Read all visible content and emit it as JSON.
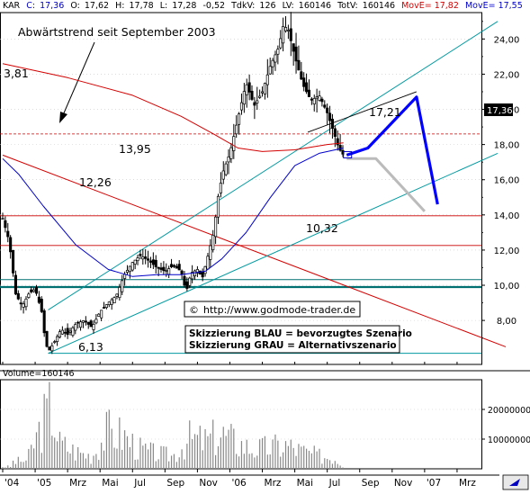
{
  "header": {
    "symbol": "KAR",
    "close_label": "C:",
    "close": "17,36",
    "open_label": "O:",
    "open": "17,62",
    "high_label": "H:",
    "high": "17,78",
    "low_label": "L:",
    "low": "17,28",
    "change": "-0,52",
    "tkv_label": "TdkV:",
    "tkv": "126",
    "lv_label": "LV:",
    "lv": "160146",
    "totv_label": "TotV:",
    "totv": "160146",
    "move1_label": "MovE=",
    "move1": "17,82",
    "move2_label": "MovE=",
    "move2": "17,55"
  },
  "annotations": {
    "trend_text": "Abwärtstrend seit September 2003",
    "website": "http://www.godmode-trader.de",
    "copyright_symbol": "©",
    "scenario_blue": "Skizzierung BLAU = bevorzugtes Szenario",
    "scenario_grey": "Skizzierung GRAU = Alternativszenario",
    "levels": [
      "3,81",
      "17,21",
      "13,95",
      "12,26",
      "10,32",
      "6,13"
    ],
    "last_price_tag": "17,36"
  },
  "volume_label": "Volume=160146",
  "colors": {
    "candle": "#000000",
    "ma_red": "#d40000",
    "ma_blue": "#0000c8",
    "channel": "#009aa0",
    "support_teal": "#007070",
    "level_red": "#cc0000",
    "scenario_blue": "#0000ff",
    "scenario_grey": "#bbbbbb",
    "volume": "#888888",
    "price_tag_bg": "#000000"
  },
  "chart_data": {
    "type": "candlestick",
    "y_axis": {
      "ticks": [
        "24,00",
        "22,00",
        "20,00",
        "18,00",
        "16,00",
        "14,00",
        "12,00",
        "10,00",
        "8,00"
      ],
      "range": [
        5.5,
        25.5
      ]
    },
    "x_axis": {
      "ticks": [
        "'04",
        "'05",
        "Mrz",
        "Mai",
        "Jul",
        "Sep",
        "Nov",
        "'06",
        "Mrz",
        "Mai",
        "Jul",
        "Sep",
        "Nov",
        "'07",
        "Mrz"
      ],
      "range_months": [
        "2004-11",
        "2007-04"
      ]
    },
    "horizontal_levels": [
      18.6,
      13.95,
      12.26,
      10.32,
      9.9,
      6.13
    ],
    "price_series": [
      {
        "m": 0.0,
        "p": 13.8
      },
      {
        "m": 0.4,
        "p": 12.5
      },
      {
        "m": 0.8,
        "p": 9.5
      },
      {
        "m": 1.2,
        "p": 8.8
      },
      {
        "m": 1.6,
        "p": 9.5
      },
      {
        "m": 2.0,
        "p": 9.8
      },
      {
        "m": 2.4,
        "p": 8.5
      },
      {
        "m": 2.6,
        "p": 7.0
      },
      {
        "m": 2.8,
        "p": 6.2
      },
      {
        "m": 3.2,
        "p": 6.8
      },
      {
        "m": 3.6,
        "p": 7.5
      },
      {
        "m": 4.0,
        "p": 7.2
      },
      {
        "m": 4.5,
        "p": 7.8
      },
      {
        "m": 5.0,
        "p": 8.0
      },
      {
        "m": 5.5,
        "p": 7.6
      },
      {
        "m": 6.0,
        "p": 8.5
      },
      {
        "m": 6.5,
        "p": 9.0
      },
      {
        "m": 7.0,
        "p": 9.4
      },
      {
        "m": 7.5,
        "p": 10.6
      },
      {
        "m": 8.0,
        "p": 11.3
      },
      {
        "m": 8.5,
        "p": 11.7
      },
      {
        "m": 9.0,
        "p": 11.4
      },
      {
        "m": 9.5,
        "p": 11.0
      },
      {
        "m": 10.0,
        "p": 10.8
      },
      {
        "m": 10.5,
        "p": 11.1
      },
      {
        "m": 11.0,
        "p": 10.8
      },
      {
        "m": 11.3,
        "p": 9.6
      },
      {
        "m": 11.6,
        "p": 10.7
      },
      {
        "m": 12.0,
        "p": 10.9
      },
      {
        "m": 12.3,
        "p": 10.4
      },
      {
        "m": 12.6,
        "p": 11.5
      },
      {
        "m": 13.0,
        "p": 13.0
      },
      {
        "m": 13.3,
        "p": 15.2
      },
      {
        "m": 13.6,
        "p": 16.5
      },
      {
        "m": 14.0,
        "p": 17.5
      },
      {
        "m": 14.5,
        "p": 19.5
      },
      {
        "m": 15.0,
        "p": 21.5
      },
      {
        "m": 15.5,
        "p": 20.2
      },
      {
        "m": 16.0,
        "p": 21.0
      },
      {
        "m": 16.5,
        "p": 22.5
      },
      {
        "m": 17.0,
        "p": 23.5
      },
      {
        "m": 17.3,
        "p": 24.8
      },
      {
        "m": 17.6,
        "p": 24.5
      },
      {
        "m": 18.0,
        "p": 23.0
      },
      {
        "m": 18.5,
        "p": 21.4
      },
      {
        "m": 19.0,
        "p": 20.5
      },
      {
        "m": 19.5,
        "p": 20.8
      },
      {
        "m": 20.0,
        "p": 19.8
      },
      {
        "m": 20.4,
        "p": 18.7
      },
      {
        "m": 20.7,
        "p": 17.8
      },
      {
        "m": 21.0,
        "p": 17.4
      }
    ],
    "moving_average_red": [
      {
        "m": 0,
        "p": 22.6
      },
      {
        "m": 4,
        "p": 21.8
      },
      {
        "m": 8,
        "p": 20.8
      },
      {
        "m": 11,
        "p": 19.6
      },
      {
        "m": 13,
        "p": 18.6
      },
      {
        "m": 14.5,
        "p": 17.8
      },
      {
        "m": 16,
        "p": 17.6
      },
      {
        "m": 18,
        "p": 17.7
      },
      {
        "m": 20,
        "p": 18.0
      },
      {
        "m": 21,
        "p": 18.1
      }
    ],
    "moving_average_blue": [
      {
        "m": 0,
        "p": 17.2
      },
      {
        "m": 1,
        "p": 16.3
      },
      {
        "m": 2.5,
        "p": 14.5
      },
      {
        "m": 4.5,
        "p": 12.3
      },
      {
        "m": 6.5,
        "p": 10.9
      },
      {
        "m": 8,
        "p": 10.5
      },
      {
        "m": 9.5,
        "p": 10.6
      },
      {
        "m": 11,
        "p": 10.6
      },
      {
        "m": 12.5,
        "p": 10.8
      },
      {
        "m": 13.5,
        "p": 11.5
      },
      {
        "m": 15,
        "p": 13.0
      },
      {
        "m": 16.5,
        "p": 15.0
      },
      {
        "m": 18,
        "p": 16.8
      },
      {
        "m": 19.5,
        "p": 17.5
      },
      {
        "m": 21,
        "p": 17.8
      }
    ],
    "downtrend_line": [
      {
        "m": 0,
        "p": 17.4
      },
      {
        "m": 31,
        "p": 6.5
      }
    ],
    "channel_upper": [
      {
        "m": 2.8,
        "p": 8.6
      },
      {
        "m": 30.5,
        "p": 25.0
      }
    ],
    "channel_lower": [
      {
        "m": 2.8,
        "p": 6.13
      },
      {
        "m": 30.5,
        "p": 17.5
      }
    ],
    "triangle_top": [
      {
        "m": 18.8,
        "p": 18.7
      },
      {
        "m": 25.5,
        "p": 21.0
      }
    ],
    "scenario_blue_path": [
      {
        "m": 21.2,
        "p": 17.4
      },
      {
        "m": 22.5,
        "p": 17.8
      },
      {
        "m": 25.5,
        "p": 20.7
      },
      {
        "m": 26.8,
        "p": 14.6
      }
    ],
    "scenario_grey_path": [
      {
        "m": 21.2,
        "p": 17.2
      },
      {
        "m": 23.0,
        "p": 17.2
      },
      {
        "m": 26.0,
        "p": 14.2
      }
    ],
    "volume": {
      "ticks": [
        "20000000",
        "10000000"
      ],
      "range": [
        0,
        30000000
      ],
      "bars": [
        {
          "m": 0.5,
          "v": 3000000
        },
        {
          "m": 1.5,
          "v": 4000000
        },
        {
          "m": 2.5,
          "v": 22000000
        },
        {
          "m": 3.0,
          "v": 29000000
        },
        {
          "m": 3.5,
          "v": 12000000
        },
        {
          "m": 4.5,
          "v": 8000000
        },
        {
          "m": 5.5,
          "v": 6000000
        },
        {
          "m": 6.5,
          "v": 18000000
        },
        {
          "m": 7.5,
          "v": 15000000
        },
        {
          "m": 8.5,
          "v": 9000000
        },
        {
          "m": 9.5,
          "v": 7000000
        },
        {
          "m": 10.5,
          "v": 6000000
        },
        {
          "m": 11.5,
          "v": 14000000
        },
        {
          "m": 12.5,
          "v": 13000000
        },
        {
          "m": 13.5,
          "v": 16000000
        },
        {
          "m": 14.5,
          "v": 12000000
        },
        {
          "m": 15.5,
          "v": 9000000
        },
        {
          "m": 16.5,
          "v": 10000000
        },
        {
          "m": 17.5,
          "v": 11000000
        },
        {
          "m": 18.5,
          "v": 8000000
        },
        {
          "m": 19.5,
          "v": 6000000
        },
        {
          "m": 20.5,
          "v": 5000000
        },
        {
          "m": 21.0,
          "v": 1000000
        }
      ]
    }
  }
}
